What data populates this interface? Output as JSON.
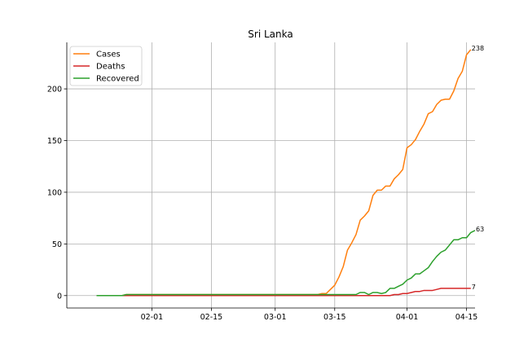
{
  "chart_data": {
    "type": "line",
    "title": "Sri Lanka",
    "xlabel": "",
    "ylabel": "",
    "x_start": "2020-01-19",
    "x_end": "2020-04-14",
    "xlim": [
      "2020-01-12",
      "2020-04-17"
    ],
    "ylim": [
      -12,
      245
    ],
    "grid": true,
    "legend_position": "top-left",
    "x_ticks": [
      "2020-02-01",
      "2020-02-15",
      "2020-03-01",
      "2020-03-15",
      "2020-04-01",
      "2020-04-15"
    ],
    "x_tick_labels": [
      "02-01",
      "02-15",
      "03-01",
      "03-15",
      "04-01",
      "04-15"
    ],
    "y_ticks": [
      0,
      50,
      100,
      150,
      200
    ],
    "y_tick_labels": [
      "0",
      "50",
      "100",
      "150",
      "200"
    ],
    "series": [
      {
        "name": "Cases",
        "color": "#ff7f0e",
        "end_label": "238",
        "values": [
          0,
          0,
          0,
          0,
          0,
          0,
          0,
          1,
          1,
          1,
          1,
          1,
          1,
          1,
          1,
          1,
          1,
          1,
          1,
          1,
          1,
          1,
          1,
          1,
          1,
          1,
          1,
          1,
          1,
          1,
          1,
          1,
          1,
          1,
          1,
          1,
          1,
          1,
          1,
          1,
          1,
          1,
          1,
          1,
          1,
          1,
          1,
          1,
          1,
          1,
          1,
          1,
          1,
          2,
          2,
          6,
          10,
          18,
          28,
          44,
          51,
          59,
          73,
          77,
          82,
          97,
          102,
          102,
          106,
          106,
          113,
          117,
          122,
          143,
          146,
          151,
          159,
          166,
          176,
          178,
          185,
          189,
          190,
          190,
          198,
          210,
          217,
          233,
          238
        ]
      },
      {
        "name": "Deaths",
        "color": "#d62728",
        "end_label": "7",
        "values": [
          0,
          0,
          0,
          0,
          0,
          0,
          0,
          0,
          0,
          0,
          0,
          0,
          0,
          0,
          0,
          0,
          0,
          0,
          0,
          0,
          0,
          0,
          0,
          0,
          0,
          0,
          0,
          0,
          0,
          0,
          0,
          0,
          0,
          0,
          0,
          0,
          0,
          0,
          0,
          0,
          0,
          0,
          0,
          0,
          0,
          0,
          0,
          0,
          0,
          0,
          0,
          0,
          0,
          0,
          0,
          0,
          0,
          0,
          0,
          0,
          0,
          0,
          0,
          0,
          0,
          0,
          0,
          0,
          0,
          0,
          1,
          1,
          2,
          2,
          3,
          4,
          4,
          5,
          5,
          5,
          6,
          7,
          7,
          7,
          7,
          7,
          7,
          7,
          7
        ]
      },
      {
        "name": "Recovered",
        "color": "#2ca02c",
        "end_label": "63",
        "values": [
          0,
          0,
          0,
          0,
          0,
          0,
          0,
          1,
          1,
          1,
          1,
          1,
          1,
          1,
          1,
          1,
          1,
          1,
          1,
          1,
          1,
          1,
          1,
          1,
          1,
          1,
          1,
          1,
          1,
          1,
          1,
          1,
          1,
          1,
          1,
          1,
          1,
          1,
          1,
          1,
          1,
          1,
          1,
          1,
          1,
          1,
          1,
          1,
          1,
          1,
          1,
          1,
          1,
          1,
          1,
          1,
          1,
          1,
          1,
          1,
          1,
          1,
          3,
          3,
          1,
          3,
          3,
          2,
          3,
          7,
          7,
          9,
          11,
          15,
          17,
          21,
          21,
          24,
          27,
          33,
          38,
          42,
          44,
          49,
          54,
          54,
          56,
          56,
          61,
          63
        ]
      }
    ]
  }
}
